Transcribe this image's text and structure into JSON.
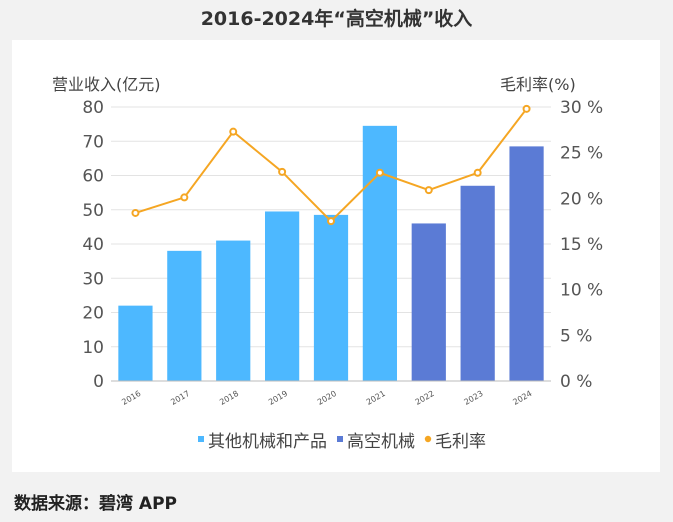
{
  "title": "2016-2024年“高空机械”收入",
  "source": "数据来源：碧湾 APP",
  "chart_data": {
    "type": "bar",
    "categories": [
      "2016",
      "2017",
      "2018",
      "2019",
      "2020",
      "2021",
      "2022",
      "2023",
      "2024"
    ],
    "series": [
      {
        "name": "其他机械和产品",
        "type": "bar",
        "axis": "left",
        "color": "#4db8ff",
        "values": [
          22,
          38,
          41,
          49.5,
          48.5,
          74.5,
          null,
          null,
          null
        ]
      },
      {
        "name": "高空机械",
        "type": "bar",
        "axis": "left",
        "color": "#5b7bd5",
        "values": [
          null,
          null,
          null,
          null,
          null,
          null,
          46,
          57,
          68.5
        ]
      },
      {
        "name": "毛利率",
        "type": "line",
        "axis": "right",
        "color": "#f5a623",
        "values": [
          18.4,
          20.1,
          27.3,
          22.9,
          17.5,
          22.8,
          20.9,
          22.8,
          29.8
        ]
      }
    ],
    "ylabel_left": "营业收入(亿元)",
    "ylabel_right": "毛利率(%)",
    "ylim_left": [
      0,
      80
    ],
    "ylim_right": [
      0,
      30
    ],
    "yticks_left": [
      "0",
      "10",
      "20",
      "30",
      "40",
      "50",
      "60",
      "70",
      "80"
    ],
    "yticks_right": [
      "0 %",
      "5 %",
      "10 %",
      "15 %",
      "20 %",
      "25 %",
      "30 %"
    ],
    "grid": true,
    "legend_position": "bottom"
  }
}
